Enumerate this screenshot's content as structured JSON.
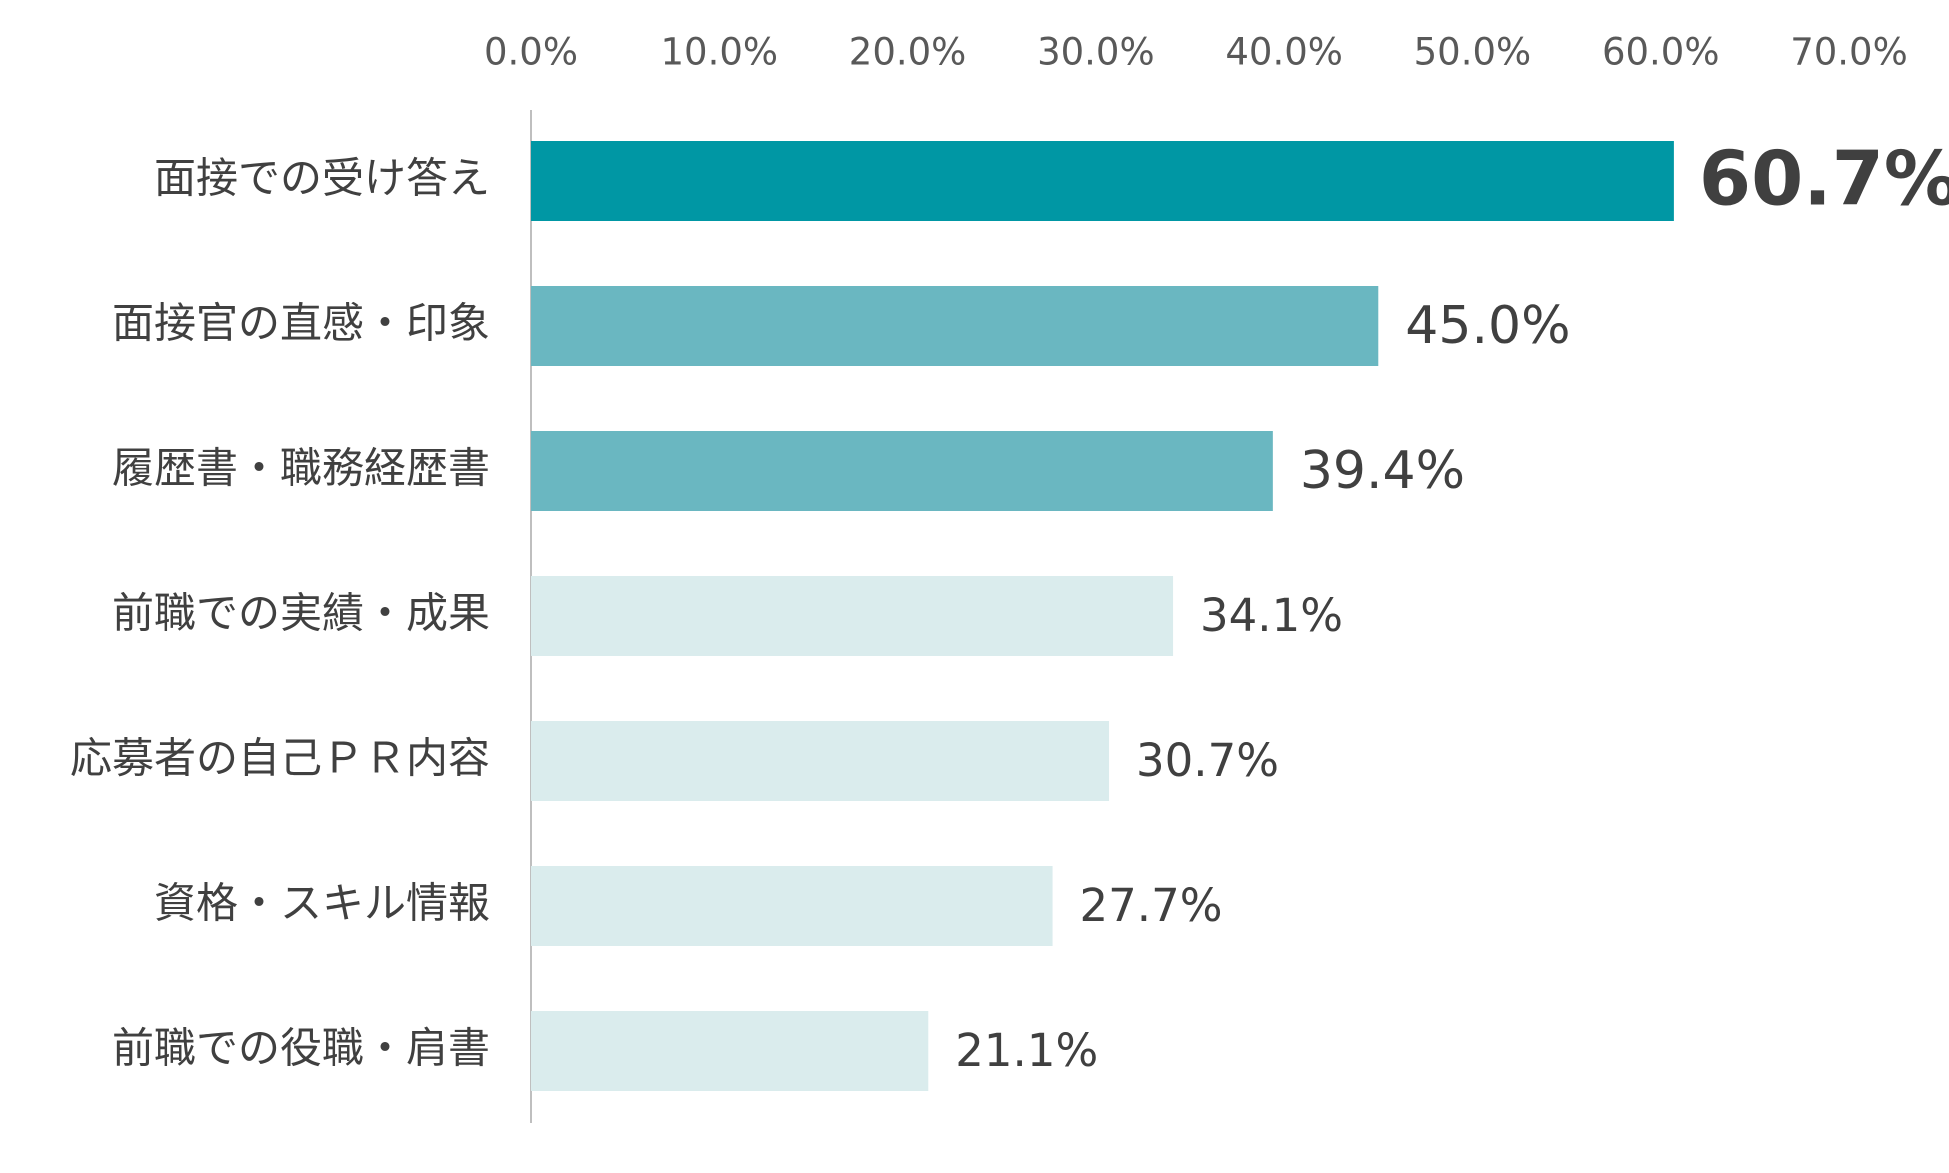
{
  "chart_data": {
    "type": "bar",
    "orientation": "horizontal",
    "categories": [
      "面接での受け答え",
      "面接官の直感・印象",
      "履歴書・職務経歴書",
      "前職での実績・成果",
      "応募者の自己ＰＲ内容",
      "資格・スキル情報",
      "前職での役職・肩書"
    ],
    "values": [
      60.7,
      45.0,
      39.4,
      34.1,
      30.7,
      27.7,
      21.1
    ],
    "value_labels": [
      "60.7%",
      "45.0%",
      "39.4%",
      "34.1%",
      "30.7%",
      "27.7%",
      "21.1%"
    ],
    "colors": [
      "#0097a4",
      "#6ab7c1",
      "#6ab7c1",
      "#daeced",
      "#daeced",
      "#daeced",
      "#daeced"
    ],
    "xlim": [
      0,
      70
    ],
    "xticks": [
      {
        "value": 0,
        "label": "0.0%"
      },
      {
        "value": 10,
        "label": "10.0%"
      },
      {
        "value": 20,
        "label": "20.0%"
      },
      {
        "value": 30,
        "label": "30.0%"
      },
      {
        "value": 40,
        "label": "40.0%"
      },
      {
        "value": 50,
        "label": "50.0%"
      },
      {
        "value": 60,
        "label": "60.0%"
      },
      {
        "value": 70,
        "label": "70.0%"
      }
    ],
    "grid": false
  }
}
